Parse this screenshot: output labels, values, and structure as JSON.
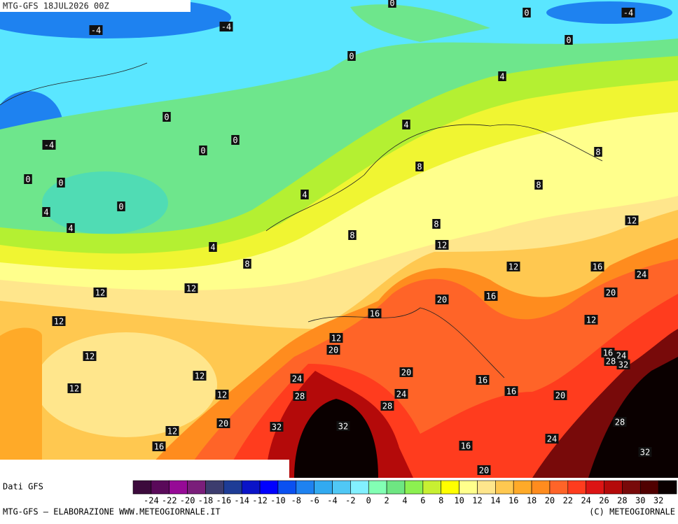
{
  "header": {
    "title": "MTG-GFS 18JUL2026 00Z"
  },
  "map": {
    "contour_labels": [
      0,
      0,
      -4,
      -4,
      -4,
      0,
      0,
      4,
      0,
      -4,
      0,
      0,
      4,
      8,
      8,
      0,
      0,
      8,
      4,
      0,
      4,
      4,
      8,
      8,
      12,
      12,
      4,
      8,
      12,
      16,
      24,
      12,
      12,
      20,
      16,
      20,
      16,
      12,
      12,
      12,
      20,
      16,
      24,
      28,
      32,
      12,
      20,
      24,
      12,
      16,
      12,
      16,
      24,
      12,
      20,
      28,
      28,
      20,
      32,
      32,
      28,
      12,
      24,
      16,
      16,
      32,
      20
    ]
  },
  "legend": {
    "source": "Dati GFS",
    "colors": [
      "#3c0a3c",
      "#5a0a5a",
      "#960a96",
      "#7a1e7a",
      "#3c3c6e",
      "#1e3c96",
      "#0a14c8",
      "#0000ff",
      "#0a50f0",
      "#1e82f0",
      "#32aaf0",
      "#50c8f5",
      "#82f0ff",
      "#82ffb4",
      "#6ee682",
      "#8cf050",
      "#c8f032",
      "#ffff00",
      "#ffff8c",
      "#ffe68c",
      "#ffc850",
      "#ffaa28",
      "#ff8c1e",
      "#ff6428",
      "#ff3c1e",
      "#dc1414",
      "#b40a0a",
      "#780a0a",
      "#500000",
      "#0a0000"
    ],
    "labels": [
      -24,
      -22,
      -20,
      -18,
      -16,
      -14,
      -12,
      -10,
      -8,
      -6,
      -4,
      -2,
      0,
      2,
      4,
      6,
      8,
      10,
      12,
      14,
      16,
      18,
      20,
      22,
      24,
      26,
      28,
      30,
      32
    ]
  },
  "footer": {
    "left": "MTG-GFS — ELABORAZIONE WWW.METEOGIORNALE.IT",
    "right": "(C) METEOGIORNALE"
  }
}
